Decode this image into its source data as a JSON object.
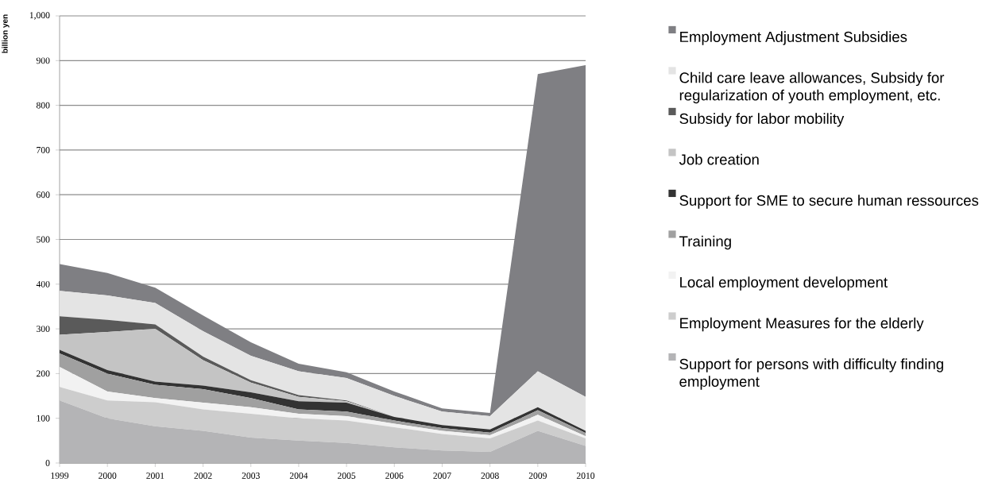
{
  "chart_data": {
    "type": "area",
    "stacked": true,
    "ylabel": "billion yen",
    "categories": [
      "1999",
      "2000",
      "2001",
      "2002",
      "2003",
      "2004",
      "2005",
      "2006",
      "2007",
      "2008",
      "2009",
      "2010"
    ],
    "ylim": [
      0,
      1000
    ],
    "yticks": [
      0,
      100,
      200,
      300,
      400,
      500,
      600,
      700,
      800,
      900,
      {
        "value": 1000,
        "label": "1,000"
      }
    ],
    "grid": "y",
    "legend": "right",
    "series": [
      {
        "name": "Support for persons with difficulty finding employment",
        "color": "#b4b4b6",
        "values": [
          140,
          100,
          82,
          72,
          57,
          50,
          45,
          35,
          28,
          25,
          72,
          38
        ]
      },
      {
        "name": "Employment Measures for the elderly",
        "color": "#cdcdcd",
        "values": [
          30,
          40,
          54,
          48,
          53,
          50,
          50,
          45,
          37,
          30,
          23,
          17
        ]
      },
      {
        "name": "Local employment development",
        "color": "#f2f2f2",
        "values": [
          45,
          20,
          9,
          15,
          15,
          10,
          10,
          8,
          7,
          7,
          13,
          5
        ]
      },
      {
        "name": "Training",
        "color": "#a0a0a0",
        "values": [
          30,
          40,
          30,
          30,
          20,
          10,
          10,
          7,
          6,
          6,
          10,
          7
        ]
      },
      {
        "name": "Support for SME to secure human ressources",
        "color": "#333333",
        "values": [
          8,
          8,
          7,
          8,
          13,
          18,
          20,
          8,
          7,
          7,
          7,
          5
        ]
      },
      {
        "name": "Job creation",
        "color": "#c4c4c4",
        "values": [
          34,
          85,
          118,
          57,
          22,
          10,
          3,
          0,
          0,
          0,
          0,
          0
        ]
      },
      {
        "name": "Subsidy for labor mobility",
        "color": "#5a5a5a",
        "values": [
          41,
          27,
          10,
          8,
          5,
          4,
          2,
          0,
          0,
          0,
          0,
          0
        ]
      },
      {
        "name": "Child care leave allowances, Subsidy for regularization of youth employment, etc.",
        "color": "#e4e4e4",
        "values": [
          57,
          55,
          48,
          57,
          55,
          53,
          50,
          47,
          30,
          30,
          80,
          76
        ]
      },
      {
        "name": "Employment Adjustment Subsidies",
        "color": "#7f7f83",
        "values": [
          60,
          50,
          34,
          35,
          30,
          17,
          13,
          10,
          7,
          7,
          665,
          742
        ]
      }
    ]
  }
}
